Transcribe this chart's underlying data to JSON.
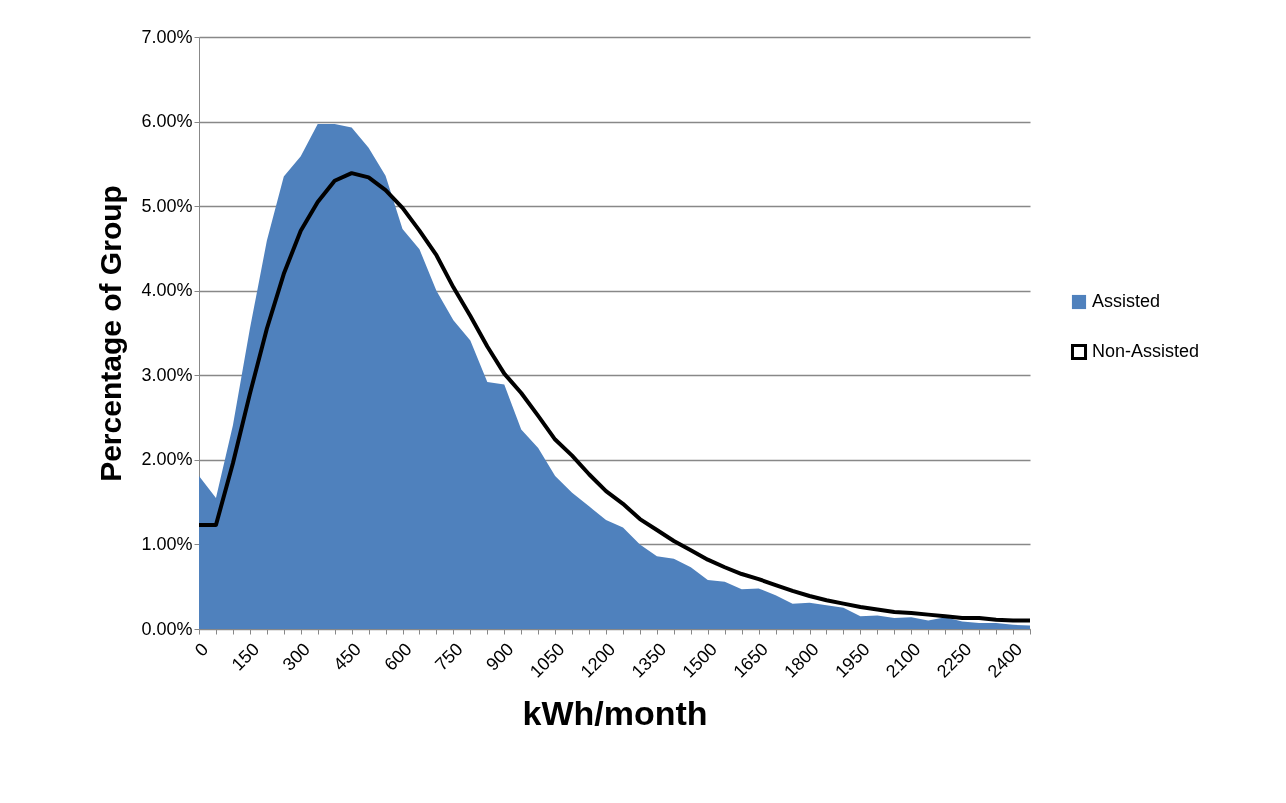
{
  "chart_data": {
    "type": "area",
    "xlabel": "kWh/month",
    "ylabel": "Percentage of Group",
    "categories": [
      "0",
      null,
      null,
      "150",
      null,
      null,
      "300",
      null,
      null,
      "450",
      null,
      null,
      "600",
      null,
      null,
      "750",
      null,
      null,
      "900",
      null,
      null,
      "1050",
      null,
      null,
      "1200",
      null,
      null,
      "1350",
      null,
      null,
      "1500",
      null,
      null,
      "1650",
      null,
      null,
      "1800",
      null,
      null,
      "1950",
      null,
      null,
      "2100",
      null,
      null,
      "2250",
      null,
      null,
      "2400",
      null
    ],
    "series": [
      {
        "name": "Assisted",
        "color": "#4f81bd",
        "values": [
          1.81,
          1.55,
          2.41,
          3.55,
          4.59,
          5.35,
          5.59,
          5.97,
          5.97,
          5.93,
          5.69,
          5.36,
          4.73,
          4.49,
          4.0,
          3.65,
          3.41,
          2.92,
          2.89,
          2.36,
          2.14,
          1.81,
          1.61,
          1.45,
          1.29,
          1.2,
          1.0,
          0.86,
          0.83,
          0.73,
          0.58,
          0.56,
          0.47,
          0.48,
          0.4,
          0.3,
          0.31,
          0.28,
          0.25,
          0.15,
          0.16,
          0.13,
          0.14,
          0.1,
          0.14,
          0.09,
          0.07,
          0.07,
          0.05,
          0.04
        ]
      },
      {
        "name": "Non-Assisted",
        "type": "line",
        "color": "#000000",
        "values": [
          1.23,
          1.23,
          1.96,
          2.78,
          3.55,
          4.2,
          4.71,
          5.05,
          5.3,
          5.39,
          5.34,
          5.19,
          4.98,
          4.71,
          4.42,
          4.04,
          3.7,
          3.34,
          3.02,
          2.79,
          2.52,
          2.24,
          2.05,
          1.83,
          1.63,
          1.48,
          1.3,
          1.17,
          1.04,
          0.93,
          0.82,
          0.73,
          0.65,
          0.59,
          0.52,
          0.45,
          0.39,
          0.34,
          0.3,
          0.26,
          0.23,
          0.2,
          0.19,
          0.17,
          0.15,
          0.13,
          0.13,
          0.11,
          0.1,
          0.1
        ]
      }
    ],
    "ylim": [
      0,
      7
    ],
    "yticks": [
      {
        "value": 0,
        "label": "0.00%"
      },
      {
        "value": 1,
        "label": "1.00%"
      },
      {
        "value": 2,
        "label": "2.00%"
      },
      {
        "value": 3,
        "label": "3.00%"
      },
      {
        "value": 4,
        "label": "4.00%"
      },
      {
        "value": 5,
        "label": "5.00%"
      },
      {
        "value": 6,
        "label": "6.00%"
      },
      {
        "value": 7,
        "label": "7.00%"
      }
    ],
    "grid": "y",
    "legend": "right"
  }
}
